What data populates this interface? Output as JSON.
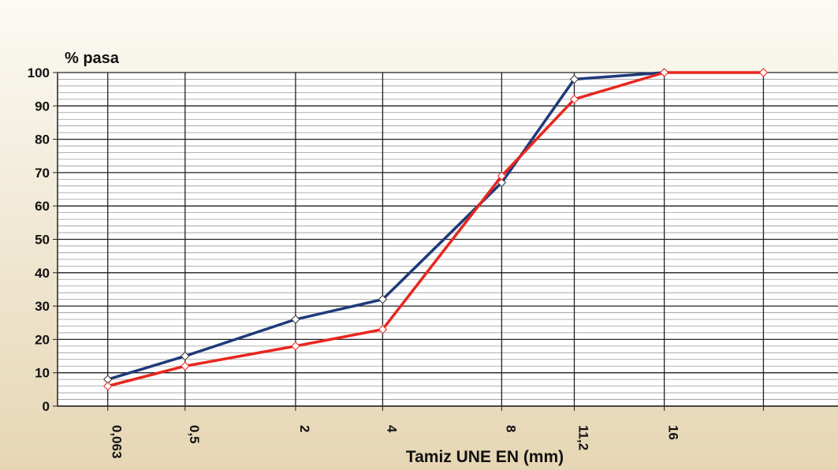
{
  "chart_data": {
    "type": "line",
    "ylabel": "% pasa",
    "xlabel": "Tamiz UNE EN (mm)",
    "x": [
      0.063,
      0.5,
      2,
      4,
      8,
      11.2,
      16,
      22.4
    ],
    "xscale": {
      "type": "power",
      "exponent": 0.45
    },
    "xlim": [
      0,
      28
    ],
    "xticks": [
      {
        "value": 0.063,
        "label": "0,063"
      },
      {
        "value": 0.5,
        "label": "0,5"
      },
      2,
      4,
      8,
      {
        "value": 11.2,
        "label": "11,2"
      },
      16,
      {
        "value": 22.4,
        "label": null
      }
    ],
    "ylim": [
      0,
      100
    ],
    "yticks": [
      0,
      10,
      20,
      30,
      40,
      50,
      60,
      70,
      80,
      90,
      100
    ],
    "yminor_step": 2,
    "grid": true,
    "series": [
      {
        "name": null,
        "color": "#1f3a7a",
        "values": [
          8,
          15,
          26,
          32,
          67,
          98,
          100,
          null
        ]
      },
      {
        "name": null,
        "color": "#e8261e",
        "values": [
          6,
          12,
          18,
          23,
          69,
          92,
          100,
          100
        ]
      }
    ]
  }
}
